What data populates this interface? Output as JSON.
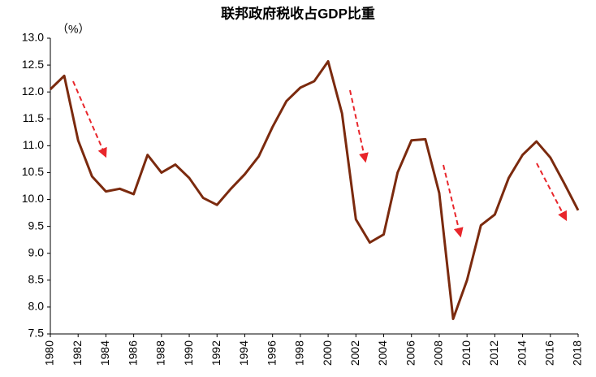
{
  "chart_data": {
    "type": "line",
    "title": "联邦政府税收占GDP比重",
    "y_unit": "（%）",
    "x": [
      1980,
      1981,
      1982,
      1983,
      1984,
      1985,
      1986,
      1987,
      1988,
      1989,
      1990,
      1991,
      1992,
      1993,
      1994,
      1995,
      1996,
      1997,
      1998,
      1999,
      2000,
      2001,
      2002,
      2003,
      2004,
      2005,
      2006,
      2007,
      2008,
      2009,
      2010,
      2011,
      2012,
      2013,
      2014,
      2015,
      2016,
      2017,
      2018
    ],
    "series": [
      {
        "name": "联邦政府税收占GDP比重",
        "color": "#7b2a0e",
        "values": [
          12.05,
          12.3,
          11.1,
          10.43,
          10.15,
          10.2,
          10.1,
          10.83,
          10.5,
          10.65,
          10.4,
          10.03,
          9.9,
          10.2,
          10.47,
          10.8,
          11.35,
          11.83,
          12.08,
          12.2,
          12.57,
          11.6,
          9.63,
          9.2,
          9.35,
          10.5,
          11.1,
          11.12,
          10.12,
          7.78,
          8.5,
          9.52,
          9.72,
          10.4,
          10.83,
          11.08,
          10.78,
          10.3,
          9.8
        ]
      }
    ],
    "xlim": [
      1980,
      2018
    ],
    "xticks": [
      1980,
      1982,
      1984,
      1986,
      1988,
      1990,
      1992,
      1994,
      1996,
      1998,
      2000,
      2002,
      2004,
      2006,
      2008,
      2010,
      2012,
      2014,
      2016,
      2018
    ],
    "ylim": [
      7.5,
      13
    ],
    "yticks": [
      7.5,
      {
        "value": 8,
        "label": "8.0"
      },
      8.5,
      {
        "value": 9,
        "label": "9.0"
      },
      9.5,
      {
        "value": 10,
        "label": "10.0"
      },
      10.5,
      {
        "value": 11,
        "label": "11.0"
      },
      11.5,
      {
        "value": 12,
        "label": "12.0"
      },
      12.5,
      {
        "value": 13,
        "label": "13.0"
      }
    ],
    "grid": false
  }
}
